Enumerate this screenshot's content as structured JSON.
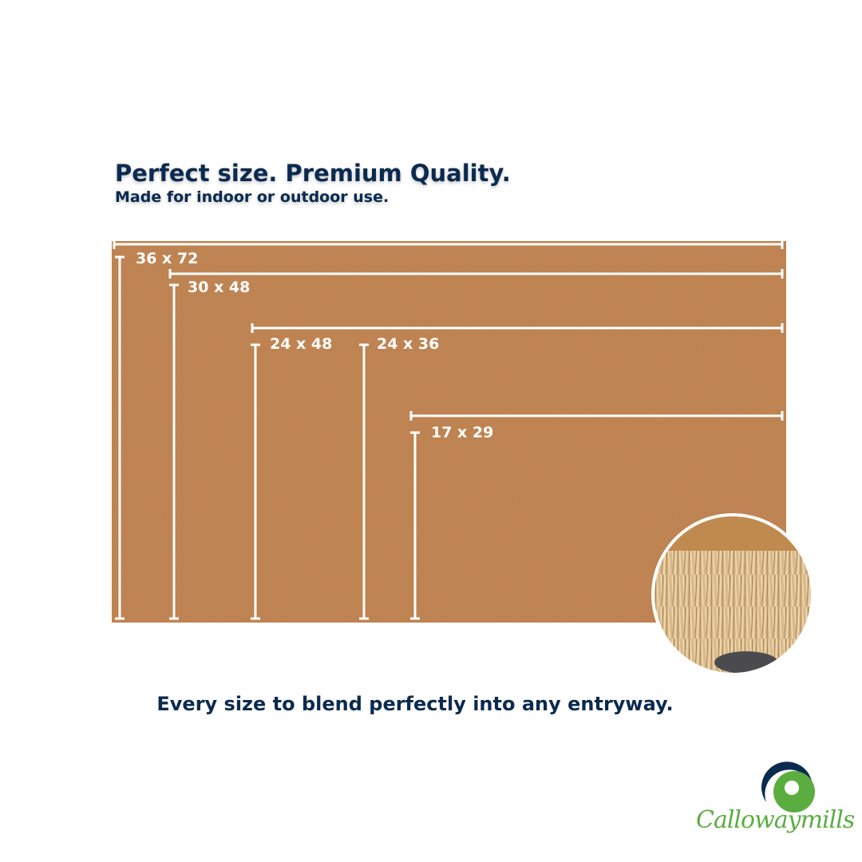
{
  "header": {
    "title": "Perfect size. Premium Quality.",
    "subtitle": "Made for indoor or outdoor use."
  },
  "sizes": [
    {
      "label": "36 x 72"
    },
    {
      "label": "30 x 48"
    },
    {
      "label": "24 x 48"
    },
    {
      "label": "24 x 36"
    },
    {
      "label": "17 x 29"
    }
  ],
  "tagline": "Every size to blend perfectly into any entryway.",
  "brand": {
    "name": "Callowaymills",
    "colors": {
      "navy": "#0b2a4f",
      "green": "#5aae3f",
      "mat": "#c58553"
    }
  }
}
